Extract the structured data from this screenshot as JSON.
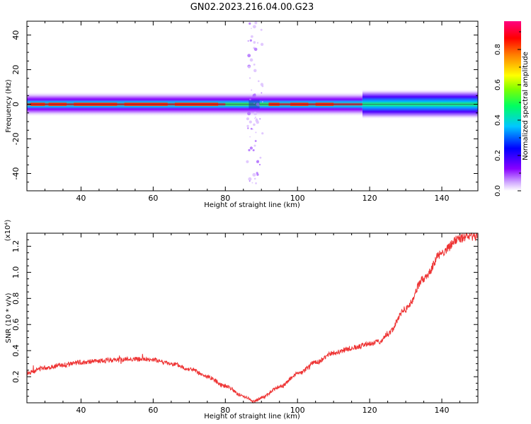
{
  "title": "GN02.2023.216.04.00.G23",
  "chart_data": [
    {
      "type": "heatmap",
      "xlabel": "Height of straight line (km)",
      "ylabel": "Frequency (Hz)",
      "xlim": [
        25,
        150
      ],
      "ylim": [
        -50,
        48
      ],
      "xticks": [
        40,
        60,
        80,
        100,
        120,
        140
      ],
      "yticks": [
        -40,
        -20,
        0,
        20,
        40
      ],
      "colorbar": {
        "label": "Normalized spectral amplitude",
        "range": [
          0.0,
          0.96
        ],
        "ticks": [
          "0.0",
          "0.2",
          "0.4",
          "0.6",
          "0.8"
        ],
        "colormap": [
          "#ffffff",
          "#c8a0ff",
          "#8800ff",
          "#0000ff",
          "#00c8ff",
          "#00ff80",
          "#80ff00",
          "#ffff00",
          "#ff8000",
          "#ff0000",
          "#ff0080"
        ]
      },
      "band": {
        "center_hz": 0,
        "halfwidth_hz": 3,
        "note": "narrow band near 0 Hz; strongest (red) 25–80 km and 92–110 km; broadening (green/cyan) above 120 km; scattered vertical spread near 88 km"
      }
    },
    {
      "type": "line",
      "xlabel": "Height of straight line (km)",
      "ylabel": "SNR (10 * v/v)",
      "yscale_label": "(x10⁴)",
      "xlim": [
        25,
        150
      ],
      "ylim": [
        0.0,
        1.3
      ],
      "xticks": [
        40,
        60,
        80,
        100,
        120,
        140
      ],
      "yticks": [
        "0.2",
        "0.4",
        "0.6",
        "0.8",
        "1.0",
        "1.2"
      ],
      "series": [
        {
          "color": "#ee3333",
          "x": [
            25,
            30,
            35,
            40,
            45,
            50,
            55,
            60,
            65,
            70,
            75,
            80,
            85,
            88,
            90,
            95,
            100,
            105,
            110,
            115,
            120,
            123,
            125,
            130,
            135,
            140,
            145,
            150
          ],
          "y": [
            0.23,
            0.27,
            0.29,
            0.31,
            0.32,
            0.33,
            0.335,
            0.33,
            0.3,
            0.26,
            0.2,
            0.13,
            0.05,
            0.01,
            0.04,
            0.12,
            0.22,
            0.31,
            0.38,
            0.42,
            0.45,
            0.47,
            0.53,
            0.72,
            0.95,
            1.15,
            1.26,
            1.28
          ]
        }
      ]
    }
  ]
}
